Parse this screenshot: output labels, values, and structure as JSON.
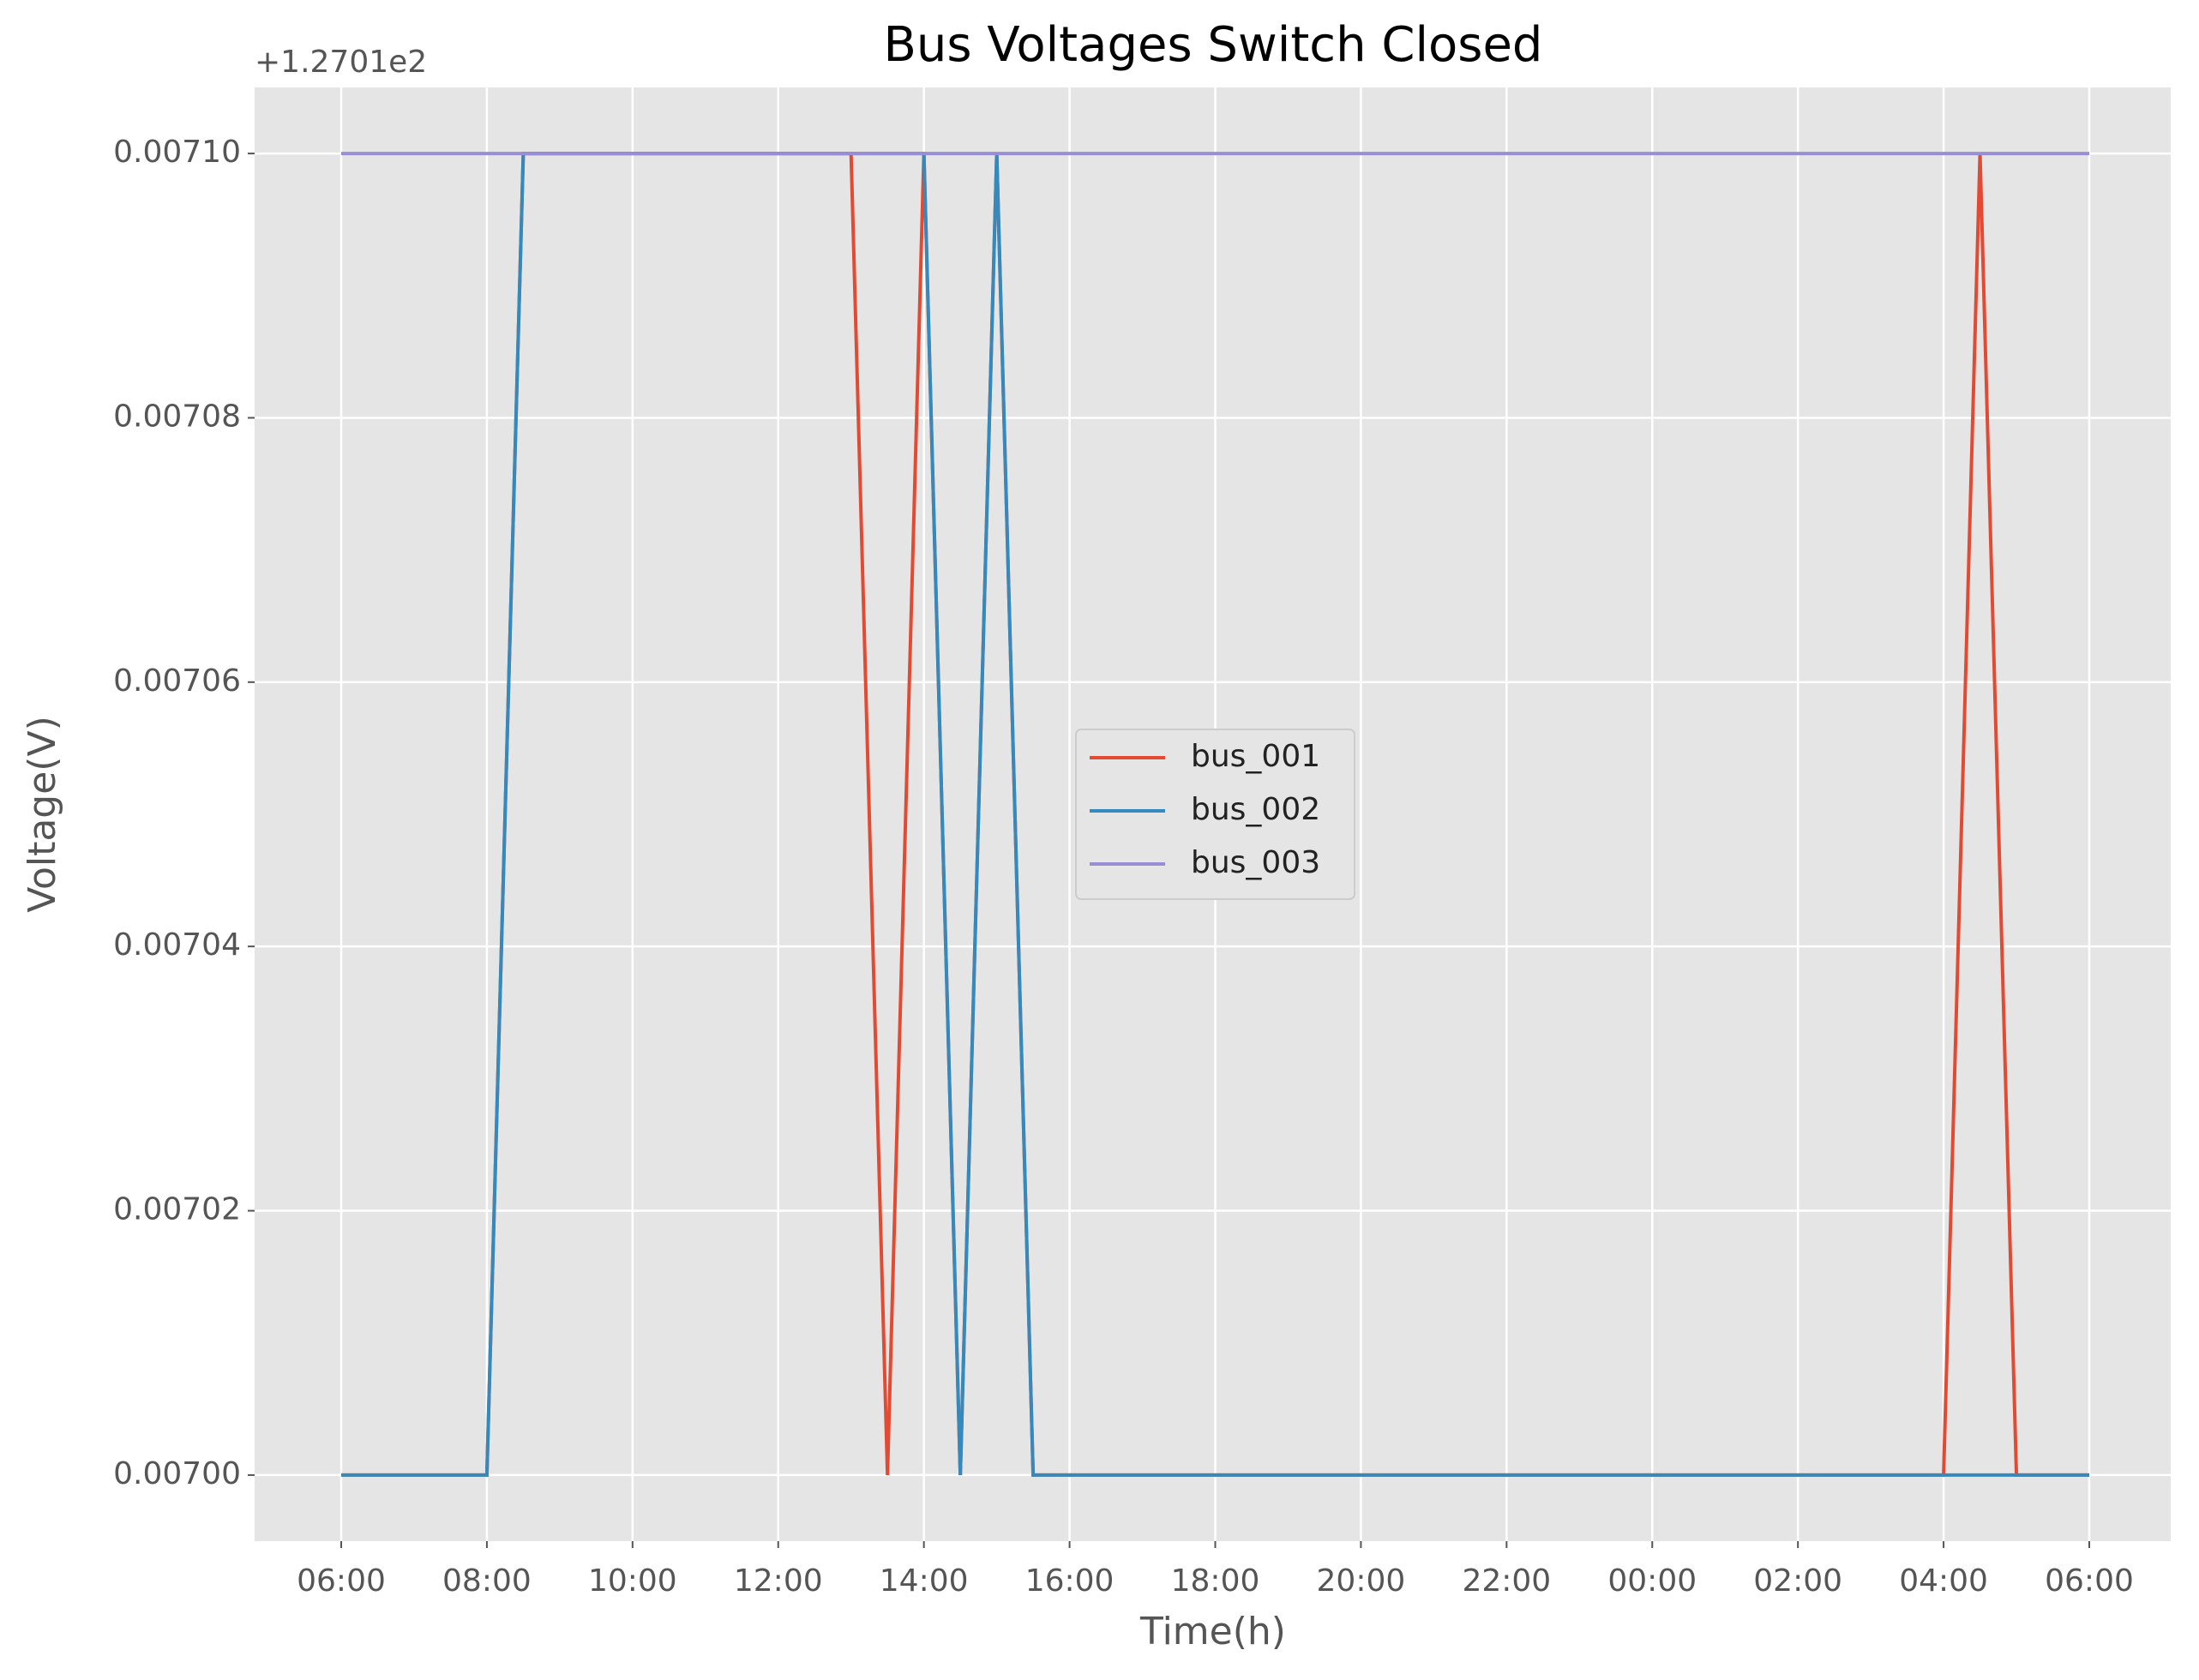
{
  "chart_data": {
    "type": "line",
    "title": "Bus Voltages Switch Closed",
    "x_label": "Time(h)",
    "y_label": "Voltage(V)",
    "y_offset_label": "+1.2701e2",
    "x": [
      "06:00",
      "06:30",
      "07:00",
      "07:30",
      "08:00",
      "08:30",
      "09:00",
      "09:30",
      "10:00",
      "10:30",
      "11:00",
      "11:30",
      "12:00",
      "12:30",
      "13:00",
      "13:30",
      "14:00",
      "14:30",
      "15:00",
      "15:30",
      "16:00",
      "16:30",
      "17:00",
      "17:30",
      "18:00",
      "18:30",
      "19:00",
      "19:30",
      "20:00",
      "20:30",
      "21:00",
      "21:30",
      "22:00",
      "22:30",
      "23:00",
      "23:30",
      "00:00",
      "00:30",
      "01:00",
      "01:30",
      "02:00",
      "02:30",
      "03:00",
      "03:30",
      "04:00",
      "04:30",
      "05:00",
      "05:30",
      "06:00"
    ],
    "series": [
      {
        "name": "bus_001",
        "color": "#e24a33",
        "values": [
          0.007,
          0.007,
          0.007,
          0.007,
          0.007,
          0.0071,
          0.0071,
          0.0071,
          0.0071,
          0.0071,
          0.0071,
          0.0071,
          0.0071,
          0.0071,
          0.0071,
          0.007,
          0.0071,
          0.007,
          0.0071,
          0.007,
          0.007,
          0.007,
          0.007,
          0.007,
          0.007,
          0.007,
          0.007,
          0.007,
          0.007,
          0.007,
          0.007,
          0.007,
          0.007,
          0.007,
          0.007,
          0.007,
          0.007,
          0.007,
          0.007,
          0.007,
          0.007,
          0.007,
          0.007,
          0.007,
          0.007,
          0.0071,
          0.007,
          0.007,
          0.007
        ]
      },
      {
        "name": "bus_002",
        "color": "#348abd",
        "values": [
          0.007,
          0.007,
          0.007,
          0.007,
          0.007,
          0.0071,
          0.0071,
          0.0071,
          0.0071,
          0.0071,
          0.0071,
          0.0071,
          0.0071,
          0.0071,
          0.0071,
          0.0071,
          0.0071,
          0.007,
          0.0071,
          0.007,
          0.007,
          0.007,
          0.007,
          0.007,
          0.007,
          0.007,
          0.007,
          0.007,
          0.007,
          0.007,
          0.007,
          0.007,
          0.007,
          0.007,
          0.007,
          0.007,
          0.007,
          0.007,
          0.007,
          0.007,
          0.007,
          0.007,
          0.007,
          0.007,
          0.007,
          0.007,
          0.007,
          0.007,
          0.007
        ]
      },
      {
        "name": "bus_003",
        "color": "#988ed5",
        "values": [
          0.0071,
          0.0071,
          0.0071,
          0.0071,
          0.0071,
          0.0071,
          0.0071,
          0.0071,
          0.0071,
          0.0071,
          0.0071,
          0.0071,
          0.0071,
          0.0071,
          0.0071,
          0.0071,
          0.0071,
          0.0071,
          0.0071,
          0.0071,
          0.0071,
          0.0071,
          0.0071,
          0.0071,
          0.0071,
          0.0071,
          0.0071,
          0.0071,
          0.0071,
          0.0071,
          0.0071,
          0.0071,
          0.0071,
          0.0071,
          0.0071,
          0.0071,
          0.0071,
          0.0071,
          0.0071,
          0.0071,
          0.0071,
          0.0071,
          0.0071,
          0.0071,
          0.0071,
          0.0071,
          0.0071,
          0.0071,
          0.0071
        ]
      }
    ],
    "xticks": [
      "06:00",
      "08:00",
      "10:00",
      "12:00",
      "14:00",
      "16:00",
      "18:00",
      "20:00",
      "22:00",
      "00:00",
      "02:00",
      "04:00",
      "06:00"
    ],
    "ylim": [
      0.006995,
      0.007105
    ],
    "yticks": [
      {
        "value": 0.007,
        "label": "0.00700"
      },
      {
        "value": 0.00702,
        "label": "0.00702"
      },
      {
        "value": 0.00704,
        "label": "0.00704"
      },
      {
        "value": 0.00706,
        "label": "0.00706"
      },
      {
        "value": 0.00708,
        "label": "0.00708"
      },
      {
        "value": 0.0071,
        "label": "0.00710"
      }
    ],
    "grid": true,
    "legend": "center"
  }
}
